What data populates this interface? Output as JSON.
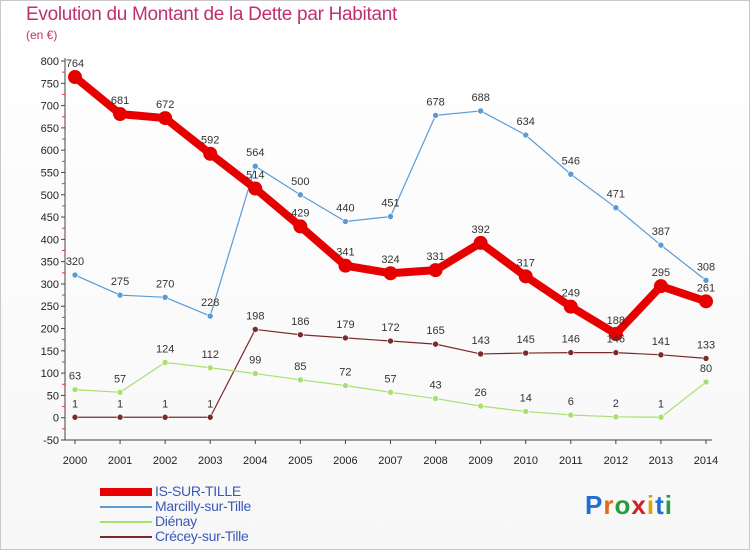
{
  "header": {
    "title": "Evolution du Montant de la Dette par Habitant",
    "unit": "(en €)"
  },
  "logo": {
    "chars": [
      "P",
      "r",
      "o",
      "x",
      "i",
      "t",
      "i"
    ],
    "colors": [
      "#1e6fd0",
      "#e26a1c",
      "#2a9d3a",
      "#d0202a",
      "#e0a400",
      "#1e6fd0",
      "#2a9d3a"
    ]
  },
  "chart_data": {
    "type": "line",
    "x": [
      "2000",
      "2001",
      "2002",
      "2003",
      "2004",
      "2005",
      "2006",
      "2007",
      "2008",
      "2009",
      "2010",
      "2011",
      "2012",
      "2013",
      "2014"
    ],
    "ylim": [
      -50,
      800
    ],
    "yticks": [
      -50,
      0,
      50,
      100,
      150,
      200,
      250,
      300,
      350,
      400,
      450,
      500,
      550,
      600,
      650,
      700,
      750,
      800
    ],
    "grid": false,
    "legend_position": "bottom-left",
    "series": [
      {
        "name": "IS-SUR-TILLE",
        "color": "#e60000",
        "values": [
          764,
          681,
          672,
          592,
          514,
          429,
          341,
          324,
          331,
          392,
          317,
          249,
          188,
          295,
          261
        ]
      },
      {
        "name": "Marcilly-sur-Tille",
        "color": "#5b9bd5",
        "values": [
          320,
          275,
          270,
          228,
          564,
          500,
          440,
          451,
          678,
          688,
          634,
          546,
          471,
          387,
          308
        ]
      },
      {
        "name": "Diénay",
        "color": "#a8e070",
        "values": [
          63,
          57,
          124,
          112,
          99,
          85,
          72,
          57,
          43,
          26,
          14,
          6,
          2,
          1,
          80
        ]
      },
      {
        "name": "Crécey-sur-Tille",
        "color": "#7a2a2a",
        "values": [
          1,
          1,
          1,
          1,
          198,
          186,
          179,
          172,
          165,
          143,
          145,
          146,
          146,
          141,
          133
        ]
      }
    ]
  }
}
